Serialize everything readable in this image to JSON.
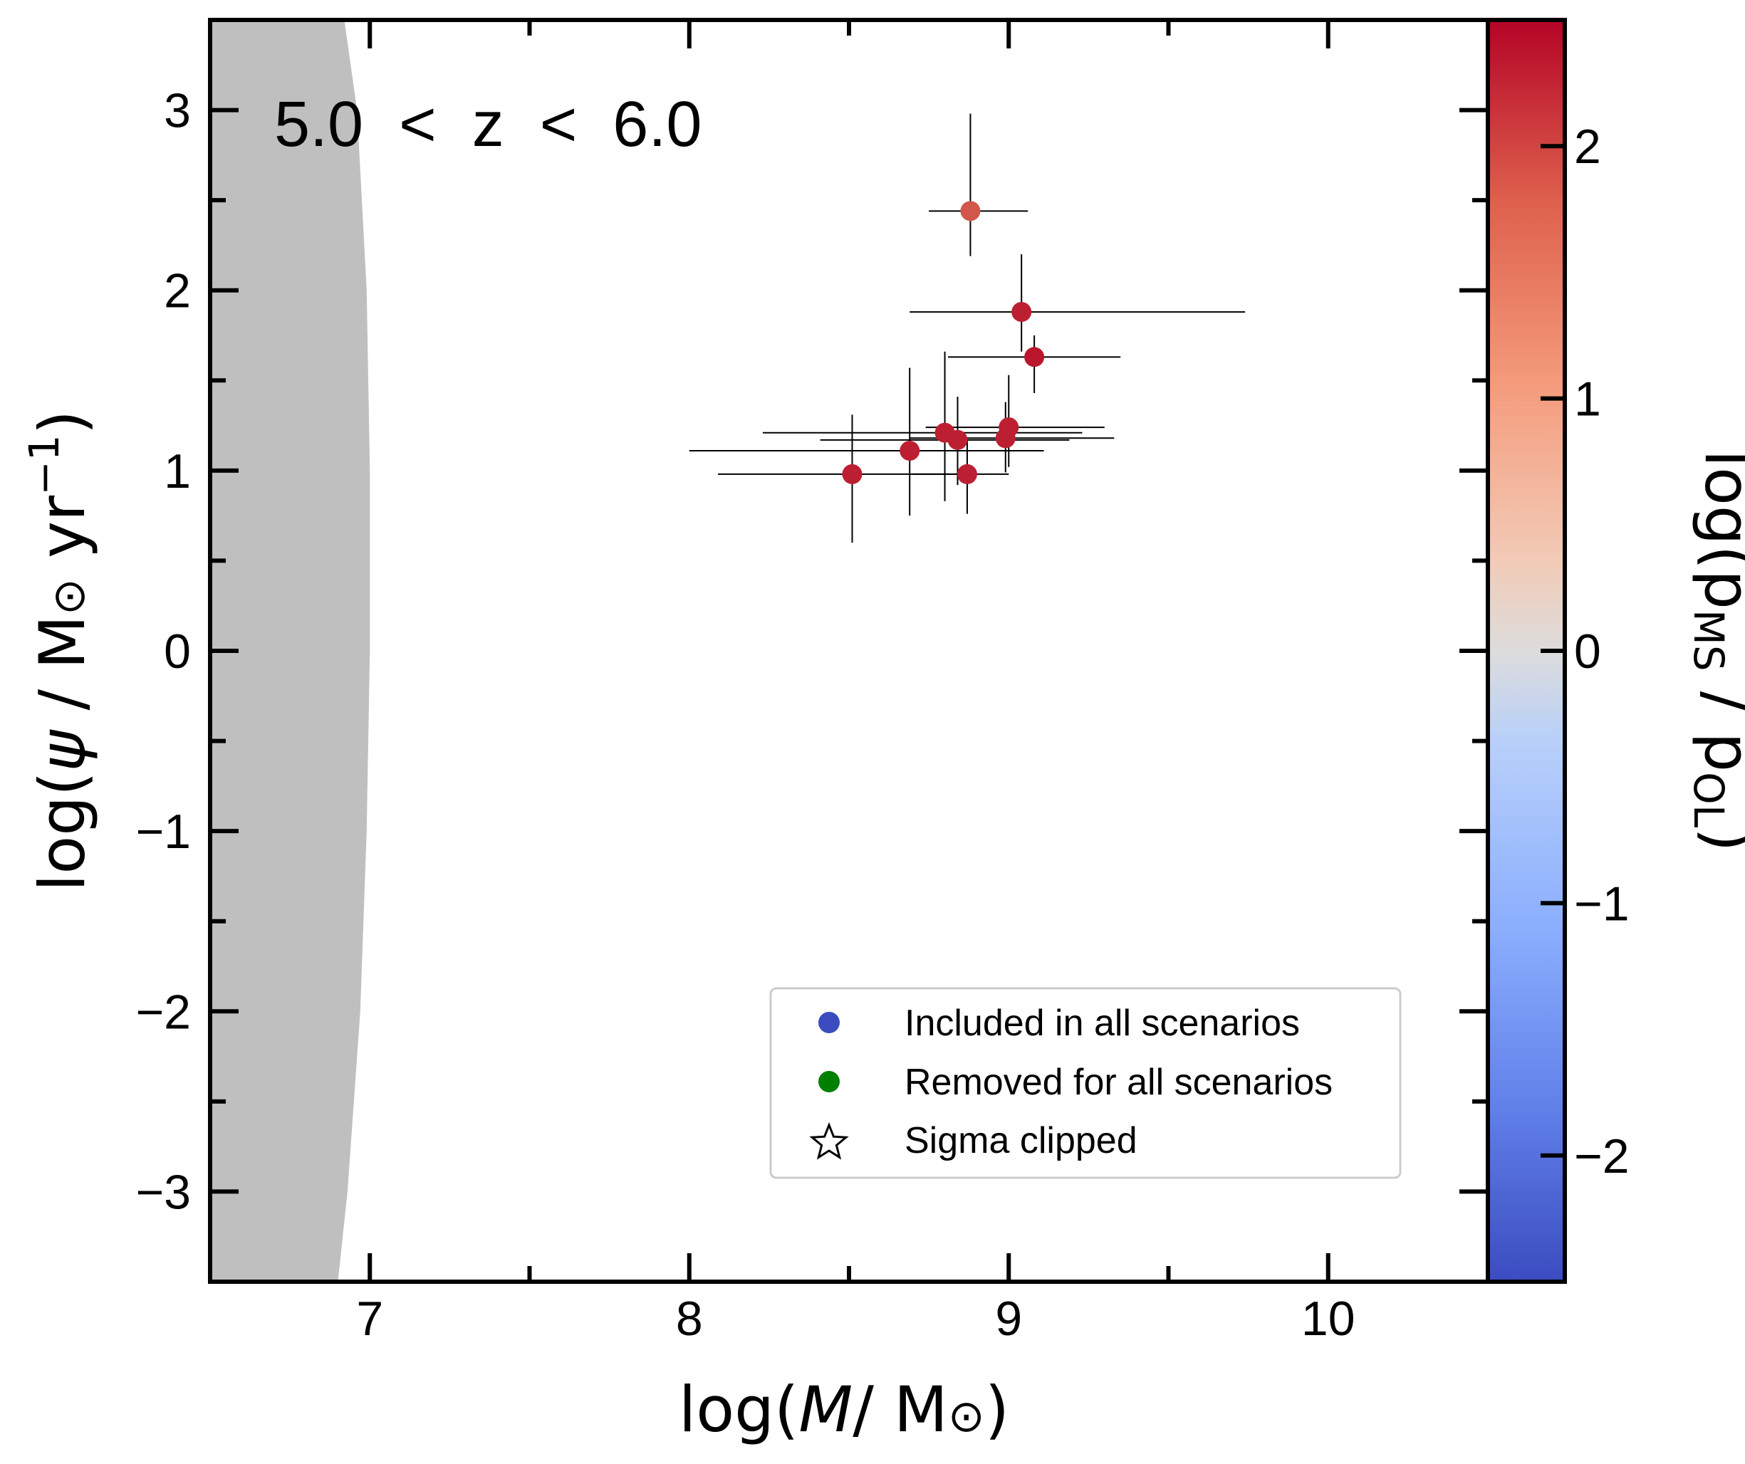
{
  "chart_data": {
    "type": "scatter",
    "title": "",
    "annotation": "5.0  <  z  <  6.0",
    "xlabel": "log(M/ M⊙)",
    "ylabel": "log(ψ / M⊙ yr⁻¹)",
    "xlim": [
      6.5,
      10.5
    ],
    "ylim": [
      -3.5,
      3.5
    ],
    "x_ticks": [
      7,
      8,
      9,
      10
    ],
    "x_tick_labels": [
      "7",
      "8",
      "9",
      "10"
    ],
    "y_ticks": [
      -3,
      -2,
      -1,
      0,
      1,
      2,
      3
    ],
    "y_tick_labels": [
      "−3",
      "−2",
      "−1",
      "0",
      "1",
      "2",
      "3"
    ],
    "grid": false,
    "colorbar": {
      "label": "log(p_MS / p_OL)",
      "label_display": "log(pMS / pOL)",
      "range": [
        -2.5,
        2.5
      ],
      "ticks": [
        -2,
        -1,
        0,
        1,
        2
      ],
      "tick_labels": [
        "−2",
        "−1",
        "0",
        "1",
        "2"
      ],
      "colormap": "coolwarm",
      "colors": [
        "#3b4cc0",
        "#7396f5",
        "#b0cbfc",
        "#dddcdc",
        "#f6bfa6",
        "#ec8c6c",
        "#c84440",
        "#b40426"
      ]
    },
    "shaded_region": {
      "description": "excluded region (grey)",
      "color": "#bfbfbf",
      "boundary_curve": [
        {
          "y": 3.5,
          "x": 6.92
        },
        {
          "y": 3.0,
          "x": 6.96
        },
        {
          "y": 2.0,
          "x": 6.99
        },
        {
          "y": 1.0,
          "x": 7.0
        },
        {
          "y": 0.0,
          "x": 7.0
        },
        {
          "y": -1.0,
          "x": 6.99
        },
        {
          "y": -2.0,
          "x": 6.97
        },
        {
          "y": -3.0,
          "x": 6.93
        },
        {
          "y": -3.5,
          "x": 6.9
        }
      ]
    },
    "points": [
      {
        "x": 8.88,
        "y": 2.44,
        "xerr": [
          0.13,
          0.18
        ],
        "yerr": [
          0.25,
          0.54
        ],
        "c": 1.6
      },
      {
        "x": 9.04,
        "y": 1.88,
        "xerr": [
          0.35,
          0.7
        ],
        "yerr": [
          0.22,
          0.32
        ],
        "c": 2.2
      },
      {
        "x": 9.08,
        "y": 1.63,
        "xerr": [
          0.27,
          0.27
        ],
        "yerr": [
          0.2,
          0.12
        ],
        "c": 2.3
      },
      {
        "x": 8.8,
        "y": 1.21,
        "xerr": [
          0.57,
          0.43
        ],
        "yerr": [
          0.38,
          0.45
        ],
        "c": 2.2
      },
      {
        "x": 8.84,
        "y": 1.17,
        "xerr": [
          0.43,
          0.35
        ],
        "yerr": [
          0.25,
          0.24
        ],
        "c": 2.2
      },
      {
        "x": 9.0,
        "y": 1.24,
        "xerr": [
          0.26,
          0.3
        ],
        "yerr": [
          0.22,
          0.29
        ],
        "c": 2.2
      },
      {
        "x": 8.99,
        "y": 1.18,
        "xerr": [
          0.3,
          0.34
        ],
        "yerr": [
          0.19,
          0.2
        ],
        "c": 2.2
      },
      {
        "x": 8.69,
        "y": 1.11,
        "xerr": [
          0.69,
          0.42
        ],
        "yerr": [
          0.36,
          0.46
        ],
        "c": 2.2
      },
      {
        "x": 8.51,
        "y": 0.98,
        "xerr": [
          0.42,
          0.37
        ],
        "yerr": [
          0.38,
          0.33
        ],
        "c": 2.2
      },
      {
        "x": 8.87,
        "y": 0.98,
        "xerr": [
          0.17,
          0.13
        ],
        "yerr": [
          0.22,
          0.19
        ],
        "c": 2.2
      }
    ],
    "legend": {
      "placement": "lower-right",
      "entries": [
        {
          "label": "Included in all scenarios",
          "marker": "circle",
          "color": "#3b4cc0"
        },
        {
          "label": "Removed for all scenarios",
          "marker": "circle",
          "color": "#008000"
        },
        {
          "label": "Sigma clipped",
          "marker": "star",
          "color": "#ffffff"
        }
      ]
    }
  }
}
